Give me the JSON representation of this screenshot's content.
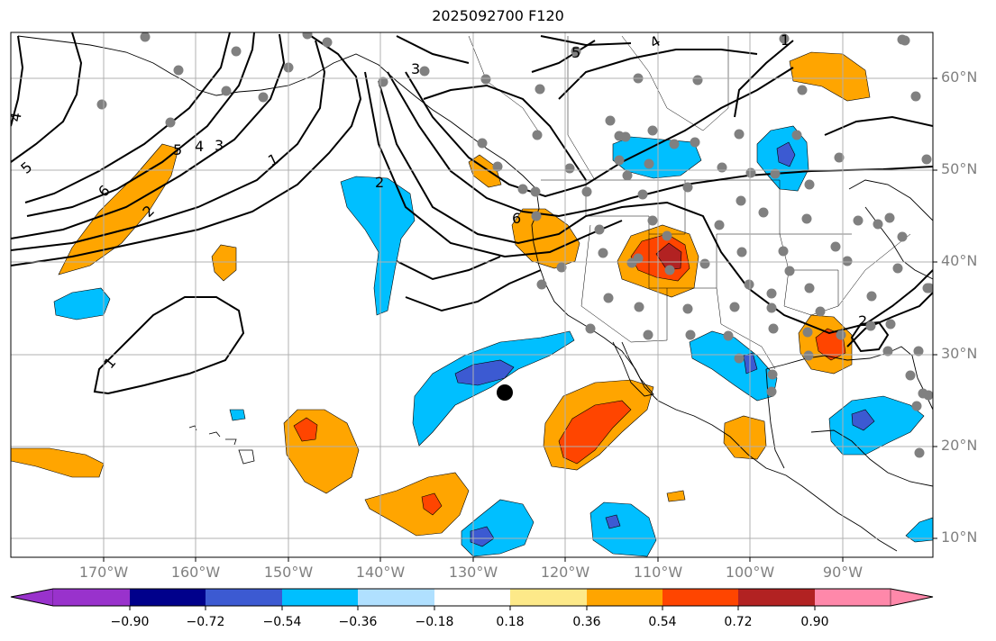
{
  "title": "2025092700 F120",
  "lat_labels": [
    "60°N",
    "50°N",
    "40°N",
    "30°N",
    "20°N",
    "10°N"
  ],
  "lon_labels": [
    "170°W",
    "160°W",
    "150°W",
    "140°W",
    "130°W",
    "120°W",
    "110°W",
    "100°W",
    "90°W"
  ],
  "colorbar": {
    "tick_labels": [
      "−0.90",
      "−0.72",
      "−0.54",
      "−0.36",
      "−0.18",
      "0.18",
      "0.36",
      "0.54",
      "0.72",
      "0.90"
    ],
    "colors": [
      "#9932cc",
      "#00008b",
      "#3c5ad2",
      "#00bfff",
      "#b0e0ff",
      "#ffffff",
      "#fde989",
      "#ffa500",
      "#ff4500",
      "#b22222",
      "#ff88aa"
    ]
  },
  "contour_labels": [
    "1",
    "1",
    "2",
    "3",
    "4",
    "5",
    "6",
    "2",
    "3",
    "4",
    "5",
    "1",
    "2",
    "4",
    "5",
    "6"
  ],
  "colors": {
    "positive_fill": "#ffa500",
    "strong_positive": "#ff4500",
    "negative_fill": "#00bfff",
    "strong_negative": "#3c5ad2",
    "station_dot": "#808080",
    "marker": "#000000"
  }
}
